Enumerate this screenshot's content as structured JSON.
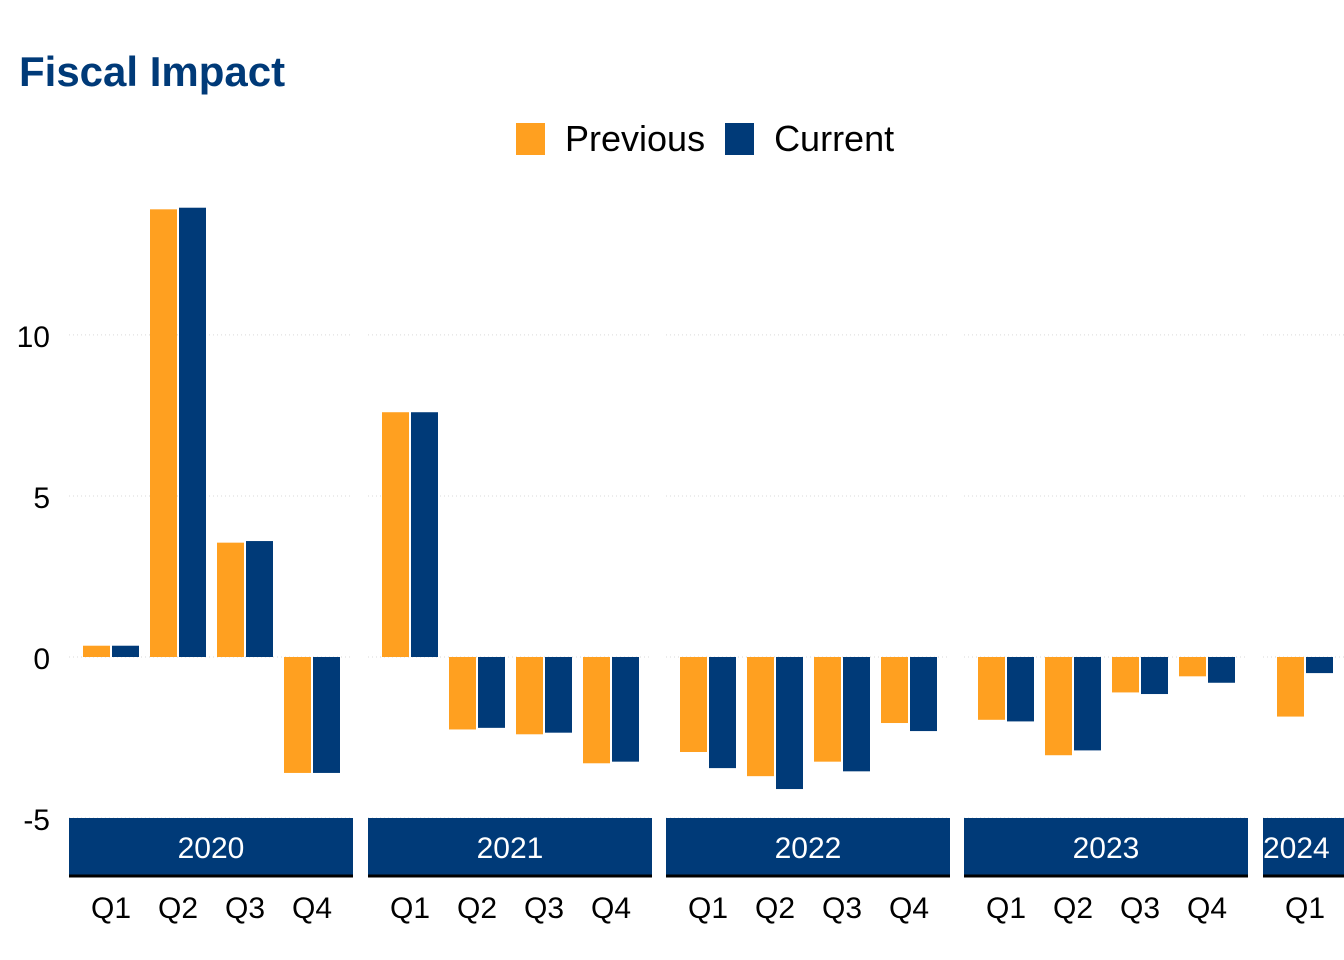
{
  "title": "Fiscal Impact",
  "legend": [
    {
      "label": "Previous",
      "color": "#FFA020"
    },
    {
      "label": "Current",
      "color": "#003A78"
    }
  ],
  "colors": {
    "strip": "#003A78",
    "strip_text": "#ffffff",
    "title": "#003A78",
    "grid": "#d9d9d9"
  },
  "chart_data": {
    "type": "bar",
    "title": "Fiscal Impact",
    "ylim": [
      -6.8,
      14.5
    ],
    "yticks": [
      -5,
      0,
      5,
      10
    ],
    "grid": "horizontal dotted",
    "legend_position": "top",
    "panels": [
      {
        "year": "2020",
        "quarters": [
          "Q1",
          "Q2",
          "Q3",
          "Q4"
        ],
        "series": [
          {
            "name": "Previous",
            "values": [
              0.35,
              13.9,
              3.55,
              -3.6
            ]
          },
          {
            "name": "Current",
            "values": [
              0.35,
              13.95,
              3.6,
              -3.6
            ]
          }
        ]
      },
      {
        "year": "2021",
        "quarters": [
          "Q1",
          "Q2",
          "Q3",
          "Q4"
        ],
        "series": [
          {
            "name": "Previous",
            "values": [
              7.6,
              -2.25,
              -2.4,
              -3.3
            ]
          },
          {
            "name": "Current",
            "values": [
              7.6,
              -2.2,
              -2.35,
              -3.25
            ]
          }
        ]
      },
      {
        "year": "2022",
        "quarters": [
          "Q1",
          "Q2",
          "Q3",
          "Q4"
        ],
        "series": [
          {
            "name": "Previous",
            "values": [
              -2.95,
              -3.7,
              -3.25,
              -2.05
            ]
          },
          {
            "name": "Current",
            "values": [
              -3.45,
              -4.1,
              -3.55,
              -2.3
            ]
          }
        ]
      },
      {
        "year": "2023",
        "quarters": [
          "Q1",
          "Q2",
          "Q3",
          "Q4"
        ],
        "series": [
          {
            "name": "Previous",
            "values": [
              -1.95,
              -3.05,
              -1.1,
              -0.6
            ]
          },
          {
            "name": "Current",
            "values": [
              -2.0,
              -2.9,
              -1.15,
              -0.8
            ]
          }
        ]
      },
      {
        "year": "2024",
        "quarters": [
          "Q1"
        ],
        "series": [
          {
            "name": "Previous",
            "values": [
              -1.85
            ]
          },
          {
            "name": "Current",
            "values": [
              -0.5
            ]
          }
        ]
      }
    ]
  }
}
